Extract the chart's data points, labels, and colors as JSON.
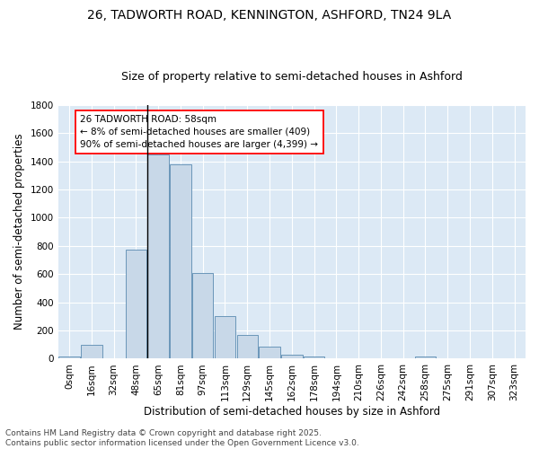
{
  "title": "26, TADWORTH ROAD, KENNINGTON, ASHFORD, TN24 9LA",
  "subtitle": "Size of property relative to semi-detached houses in Ashford",
  "xlabel": "Distribution of semi-detached houses by size in Ashford",
  "ylabel": "Number of semi-detached properties",
  "bin_labels": [
    "0sqm",
    "16sqm",
    "32sqm",
    "48sqm",
    "65sqm",
    "81sqm",
    "97sqm",
    "113sqm",
    "129sqm",
    "145sqm",
    "162sqm",
    "178sqm",
    "194sqm",
    "210sqm",
    "226sqm",
    "242sqm",
    "258sqm",
    "275sqm",
    "291sqm",
    "307sqm",
    "323sqm"
  ],
  "bar_values": [
    15,
    100,
    0,
    775,
    1450,
    1380,
    610,
    300,
    170,
    85,
    30,
    15,
    0,
    0,
    0,
    0,
    15,
    0,
    0,
    0,
    0
  ],
  "bar_color": "#c8d8e8",
  "bar_edge_color": "#5a8ab0",
  "annotation_line1": "26 TADWORTH ROAD: 58sqm",
  "annotation_line2": "← 8% of semi-detached houses are smaller (409)",
  "annotation_line3": "90% of semi-detached houses are larger (4,399) →",
  "vline_x": 3.5,
  "ylim": [
    0,
    1800
  ],
  "yticks": [
    0,
    200,
    400,
    600,
    800,
    1000,
    1200,
    1400,
    1600,
    1800
  ],
  "background_color": "#ffffff",
  "plot_bg_color": "#dce9f5",
  "grid_color": "#ffffff",
  "footer_text": "Contains HM Land Registry data © Crown copyright and database right 2025.\nContains public sector information licensed under the Open Government Licence v3.0.",
  "title_fontsize": 10,
  "subtitle_fontsize": 9,
  "axis_label_fontsize": 8.5,
  "tick_fontsize": 7.5,
  "annotation_fontsize": 7.5,
  "footer_fontsize": 6.5
}
